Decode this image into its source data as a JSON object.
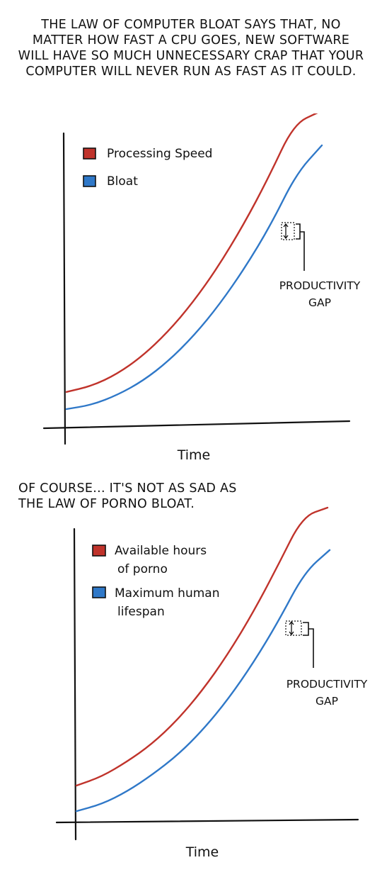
{
  "caption_top": [
    "THE LAW OF COMPUTER BLOAT SAYS THAT, NO",
    "MATTER HOW FAST A CPU GOES, NEW SOFTWARE",
    "WILL HAVE SO MUCH UNNECESSARY CRAP THAT YOUR",
    "COMPUTER WILL NEVER RUN AS FAST AS IT COULD."
  ],
  "caption_middle": [
    "OF COURSE... IT'S NOT AS SAD AS",
    "THE LAW OF PORNO BLOAT."
  ],
  "colors": {
    "red": "#c0332b",
    "blue": "#2f78c8",
    "ink": "#111111"
  },
  "chart_data": [
    {
      "type": "line",
      "xlabel": "Time",
      "ylabel": "",
      "title": "",
      "legend_placement": "top-left",
      "grid": false,
      "x": [
        0,
        0.1,
        0.2,
        0.3,
        0.4,
        0.5,
        0.6,
        0.7,
        0.8,
        0.9,
        1.0
      ],
      "series": [
        {
          "name": "Processing Speed",
          "color": "#c0332b",
          "values": [
            0.06,
            0.08,
            0.12,
            0.18,
            0.26,
            0.36,
            0.48,
            0.62,
            0.78,
            0.96,
            1.0
          ]
        },
        {
          "name": "Bloat",
          "color": "#2f78c8",
          "values": [
            0.03,
            0.045,
            0.08,
            0.13,
            0.2,
            0.29,
            0.4,
            0.53,
            0.68,
            0.86,
            0.96
          ]
        }
      ],
      "annotation": {
        "lines": [
          "PRODUCTIVITY",
          "GAP"
        ]
      }
    },
    {
      "type": "line",
      "xlabel": "Time",
      "ylabel": "",
      "title": "",
      "legend_placement": "top-left",
      "grid": false,
      "x": [
        0,
        0.1,
        0.2,
        0.3,
        0.4,
        0.5,
        0.6,
        0.7,
        0.8,
        0.9,
        1.0
      ],
      "series": [
        {
          "name": "Available hours of porno",
          "legend_lines": [
            "Available hours",
            "of porno"
          ],
          "color": "#c0332b",
          "values": [
            0.06,
            0.09,
            0.14,
            0.2,
            0.28,
            0.38,
            0.5,
            0.64,
            0.8,
            0.97,
            1.0
          ]
        },
        {
          "name": "Maximum human lifespan",
          "legend_lines": [
            "Maximum human",
            "lifespan"
          ],
          "color": "#2f78c8",
          "values": [
            0.02,
            0.045,
            0.09,
            0.15,
            0.22,
            0.31,
            0.42,
            0.55,
            0.7,
            0.87,
            0.95
          ]
        }
      ],
      "annotation": {
        "lines": [
          "PRODUCTIVITY",
          "GAP"
        ]
      }
    }
  ]
}
